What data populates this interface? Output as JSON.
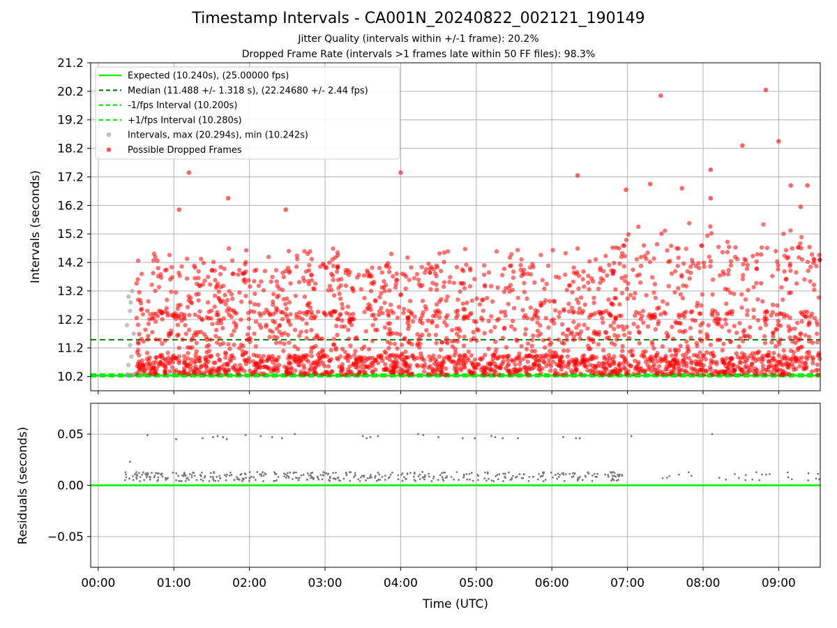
{
  "header": {
    "title": "Timestamp Intervals - CA001N_20240822_002121_190149",
    "subtitle_1": "Jitter Quality (intervals within +/-1 frame): 20.2%",
    "subtitle_2": "Dropped Frame Rate (intervals >1 frames late within 50 FF files): 98.3%"
  },
  "chart_data": [
    {
      "type": "scatter",
      "ylabel": "Intervals (seconds)",
      "xlabel": "",
      "xlim_hours": [
        -0.1,
        9.55
      ],
      "ylim": [
        9.7,
        21.2
      ],
      "yticks": [
        "10.2",
        "11.2",
        "12.2",
        "13.2",
        "14.2",
        "15.2",
        "16.2",
        "17.2",
        "18.2",
        "19.2",
        "20.2",
        "21.2"
      ],
      "grid": true,
      "legend_position": "top-left",
      "colors": {
        "expected": "#00ee00",
        "median": "#007f00",
        "interval_lines": "#00ee00",
        "intervals": "#999999",
        "dropped": "#ff0000"
      },
      "reference_lines": {
        "expected": 10.24,
        "median": 11.488,
        "minus_1fps": 10.2,
        "plus_1fps": 10.28
      },
      "legend": [
        {
          "key": "expected",
          "label": "Expected (10.240s), (25.00000 fps)",
          "style": "solid"
        },
        {
          "key": "median",
          "label": "Median (11.488 +/- 1.318 s), (22.24680 +/- 2.44 fps)",
          "style": "dashed"
        },
        {
          "key": "minus_1fps",
          "label": "-1/fps Interval (10.200s)",
          "style": "dashed"
        },
        {
          "key": "plus_1fps",
          "label": "+1/fps Interval (10.280s)",
          "style": "dashed"
        },
        {
          "key": "intervals",
          "label": "Intervals, max (20.294s), min (10.242s)",
          "style": "dot"
        },
        {
          "key": "dropped",
          "label": "Possible Dropped Frames",
          "style": "dot"
        }
      ],
      "intervals_normal_points": [
        [
          0.38,
          10.25
        ],
        [
          0.4,
          10.6
        ],
        [
          0.42,
          11.3
        ],
        [
          0.38,
          12.0
        ],
        [
          0.42,
          12.5
        ],
        [
          0.4,
          13.0
        ],
        [
          0.45,
          13.2
        ],
        [
          0.43,
          12.8
        ],
        [
          0.47,
          11.7
        ],
        [
          0.44,
          10.9
        ],
        [
          0.39,
          10.27
        ],
        [
          0.46,
          10.26
        ]
      ],
      "dropped_highlight_points": [
        [
          1.07,
          16.05
        ],
        [
          1.2,
          17.35
        ],
        [
          1.72,
          16.45
        ],
        [
          2.48,
          16.05
        ],
        [
          4.0,
          17.35
        ],
        [
          6.34,
          17.25
        ],
        [
          6.98,
          16.75
        ],
        [
          7.3,
          16.95
        ],
        [
          7.44,
          20.05
        ],
        [
          7.72,
          16.8
        ],
        [
          8.1,
          17.45
        ],
        [
          8.1,
          16.45
        ],
        [
          8.52,
          18.3
        ],
        [
          8.83,
          20.25
        ],
        [
          9.0,
          18.45
        ],
        [
          9.29,
          16.15
        ],
        [
          9.38,
          16.9
        ],
        [
          9.16,
          16.9
        ]
      ]
    },
    {
      "type": "scatter",
      "xlabel": "Time (UTC)",
      "ylabel": "Residuals (seconds)",
      "xlim_hours": [
        -0.1,
        9.55
      ],
      "ylim": [
        -0.08,
        0.08
      ],
      "yticks": [
        "0.05",
        "0.00",
        "−0.05"
      ],
      "xticks": [
        "00:00",
        "01:00",
        "02:00",
        "03:00",
        "04:00",
        "05:00",
        "06:00",
        "07:00",
        "08:00",
        "09:00"
      ],
      "grid": true,
      "zero_line_color": "#00ee00",
      "point_color": "#777777",
      "outlier_points": [
        [
          0.42,
          0.023
        ],
        [
          0.65,
          0.049
        ],
        [
          1.03,
          0.045
        ],
        [
          1.38,
          0.046
        ],
        [
          1.52,
          0.047
        ],
        [
          1.58,
          0.048
        ],
        [
          1.65,
          0.047
        ],
        [
          1.7,
          0.045
        ],
        [
          1.95,
          0.049
        ],
        [
          2.15,
          0.048
        ],
        [
          2.3,
          0.047
        ],
        [
          2.43,
          0.046
        ],
        [
          2.6,
          0.05
        ],
        [
          3.5,
          0.048
        ],
        [
          3.55,
          0.046
        ],
        [
          3.6,
          0.047
        ],
        [
          3.7,
          0.048
        ],
        [
          4.23,
          0.05
        ],
        [
          4.3,
          0.049
        ],
        [
          4.5,
          0.047
        ],
        [
          4.82,
          0.046
        ],
        [
          4.98,
          0.046
        ],
        [
          5.2,
          0.048
        ],
        [
          5.25,
          0.047
        ],
        [
          5.35,
          0.046
        ],
        [
          5.55,
          0.046
        ],
        [
          6.15,
          0.047
        ],
        [
          6.32,
          0.046
        ],
        [
          6.37,
          0.046
        ],
        [
          7.05,
          0.048
        ],
        [
          8.12,
          0.05
        ]
      ],
      "baseline_band": [
        0.004,
        0.013
      ],
      "baseline_segments_hours": [
        [
          0.35,
          6.95
        ],
        [
          7.4,
          7.85
        ],
        [
          8.1,
          9.55
        ]
      ]
    }
  ]
}
